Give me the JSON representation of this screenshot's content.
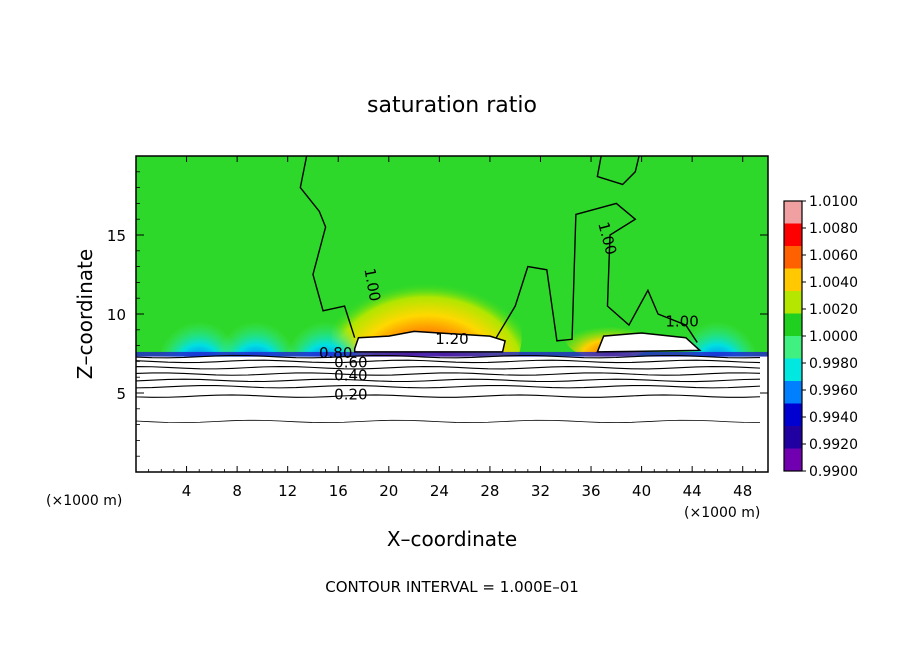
{
  "chart_data": {
    "type": "heatmap",
    "title": "saturation ratio",
    "xlabel": "X–coordinate",
    "ylabel": "Z–coordinate",
    "x_unit_left": "(×1000 m)",
    "x_unit_right": "(×1000 m)",
    "footer": "CONTOUR INTERVAL = 1.000E–01",
    "xlim": [
      0,
      50
    ],
    "ylim": [
      0,
      20
    ],
    "x_ticks": [
      4,
      8,
      12,
      16,
      20,
      24,
      28,
      32,
      36,
      40,
      44,
      48
    ],
    "y_ticks": [
      5,
      10,
      15
    ],
    "colorbar": {
      "min": 0.99,
      "max": 1.01,
      "labels": [
        "1.0100",
        "1.0080",
        "1.0060",
        "1.0040",
        "1.0020",
        "1.0000",
        "0.9980",
        "0.9960",
        "0.9940",
        "0.9920",
        "0.9900"
      ],
      "colors": [
        "#f0a0a0",
        "#ff0000",
        "#ff6000",
        "#ffc800",
        "#b4e600",
        "#20d020",
        "#40f080",
        "#00e8e0",
        "#0080ff",
        "#0000d0",
        "#2000a0",
        "#7000b0"
      ]
    },
    "contour_labels": [
      {
        "text": "1.00",
        "x": 18.3,
        "y": 11.8
      },
      {
        "text": "1.00",
        "x": 36.9,
        "y": 14.7
      },
      {
        "text": "1.00",
        "x": 43.2,
        "y": 9.2
      },
      {
        "text": "1.20",
        "x": 25.0,
        "y": 8.1
      },
      {
        "text": "0.80",
        "x": 15.8,
        "y": 7.2
      },
      {
        "text": "0.60",
        "x": 17.0,
        "y": 6.6
      },
      {
        "text": "0.40",
        "x": 17.0,
        "y": 5.8
      },
      {
        "text": "0.20",
        "x": 17.0,
        "y": 4.6
      }
    ],
    "levels": [
      0.2,
      0.4,
      0.6,
      0.8,
      1.0,
      1.2
    ]
  }
}
